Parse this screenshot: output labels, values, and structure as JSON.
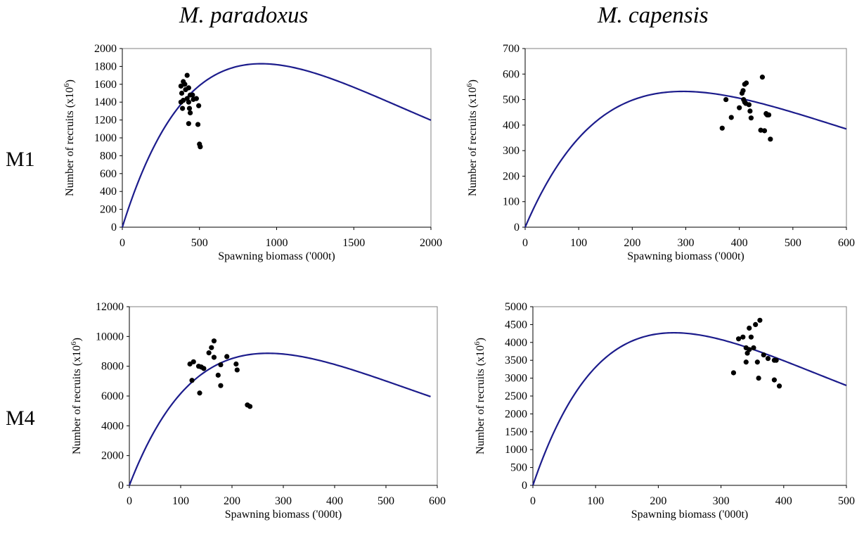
{
  "column_titles": [
    "M. paradoxus",
    "M. capensis"
  ],
  "row_labels": [
    "M1",
    "M4"
  ],
  "colors": {
    "curve": "#1c1c8c",
    "points": "#000000",
    "axis": "#000000",
    "plot_border": "#808080"
  },
  "chart_data": [
    {
      "type": "scatter",
      "title": "",
      "xlabel": "Spawning biomass ('000t)",
      "ylabel": "Number of recruits (x10^6)",
      "xlim": [
        0,
        2000
      ],
      "ylim": [
        0,
        2000
      ],
      "xticks": [
        0,
        500,
        1000,
        1500,
        2000
      ],
      "yticks": [
        0,
        200,
        400,
        600,
        800,
        1000,
        1200,
        1400,
        1600,
        1800,
        2000
      ],
      "grid": false,
      "curve": {
        "name": "",
        "type": "line",
        "peak_x": 900,
        "peak_y": 1830,
        "x_end": 2000
      },
      "points": {
        "name": "",
        "type": "scatter",
        "x": [
          380,
          395,
          405,
          420,
          430,
          385,
          410,
          440,
          460,
          395,
          380,
          420,
          455,
          480,
          390,
          430,
          435,
          495,
          440,
          490,
          430,
          500,
          505
        ],
        "y": [
          1580,
          1630,
          1600,
          1700,
          1560,
          1500,
          1540,
          1480,
          1430,
          1420,
          1400,
          1440,
          1480,
          1440,
          1330,
          1400,
          1330,
          1360,
          1280,
          1150,
          1160,
          930,
          900
        ]
      }
    },
    {
      "type": "scatter",
      "title": "",
      "xlabel": "Spawning biomass ('000t)",
      "ylabel": "Number of recruits (x10^6)",
      "xlim": [
        0,
        600
      ],
      "ylim": [
        0,
        700
      ],
      "xticks": [
        0,
        100,
        200,
        300,
        400,
        500,
        600
      ],
      "yticks": [
        0,
        100,
        200,
        300,
        400,
        500,
        600,
        700
      ],
      "grid": false,
      "curve": {
        "name": "",
        "type": "line",
        "peak_x": 295,
        "peak_y": 532,
        "x_end": 600
      },
      "points": {
        "name": "",
        "type": "scatter",
        "x": [
          410,
          413,
          407,
          405,
          408,
          443,
          375,
          410,
          412,
          418,
          400,
          420,
          450,
          452,
          455,
          422,
          385,
          368,
          440,
          447,
          458
        ],
        "y": [
          560,
          565,
          535,
          525,
          500,
          588,
          500,
          490,
          485,
          480,
          468,
          455,
          445,
          440,
          440,
          428,
          430,
          388,
          380,
          378,
          345
        ]
      }
    },
    {
      "type": "scatter",
      "title": "",
      "xlabel": "Spawning biomass ('000t)",
      "ylabel": "Number of recruits (x10^6)",
      "xlim": [
        0,
        600
      ],
      "ylim": [
        0,
        12000
      ],
      "xticks": [
        0,
        100,
        200,
        300,
        400,
        500,
        600
      ],
      "yticks": [
        0,
        2000,
        4000,
        6000,
        8000,
        10000,
        12000
      ],
      "grid": false,
      "curve": {
        "name": "",
        "type": "line",
        "peak_x": 270,
        "peak_y": 8870,
        "x_end": 587
      },
      "points": {
        "name": "",
        "type": "scatter",
        "x": [
          165,
          160,
          155,
          190,
          118,
          125,
          135,
          145,
          140,
          178,
          208,
          210,
          165,
          173,
          122,
          178,
          137,
          230,
          235
        ],
        "y": [
          9700,
          9250,
          8900,
          8650,
          8150,
          8300,
          8000,
          7850,
          7950,
          8100,
          8150,
          7750,
          8600,
          7400,
          7050,
          6700,
          6200,
          5400,
          5300
        ]
      }
    },
    {
      "type": "scatter",
      "title": "",
      "xlabel": "Spawning biomass ('000t)",
      "ylabel": "Number of recruits (x10^6)",
      "xlim": [
        0,
        500
      ],
      "ylim": [
        0,
        5000
      ],
      "xticks": [
        0,
        100,
        200,
        300,
        400,
        500
      ],
      "yticks": [
        0,
        500,
        1000,
        1500,
        2000,
        2500,
        3000,
        3500,
        4000,
        4500,
        5000
      ],
      "grid": false,
      "curve": {
        "name": "",
        "type": "line",
        "peak_x": 225,
        "peak_y": 4270,
        "x_end": 500
      },
      "points": {
        "name": "",
        "type": "scatter",
        "x": [
          362,
          355,
          345,
          348,
          335,
          328,
          340,
          342,
          352,
          345,
          368,
          375,
          385,
          388,
          340,
          358,
          320,
          360,
          385,
          393
        ],
        "y": [
          4620,
          4500,
          4400,
          4150,
          4150,
          4100,
          3850,
          3700,
          3850,
          3800,
          3650,
          3550,
          3500,
          3500,
          3450,
          3450,
          3150,
          3000,
          2950,
          2780
        ]
      }
    }
  ]
}
